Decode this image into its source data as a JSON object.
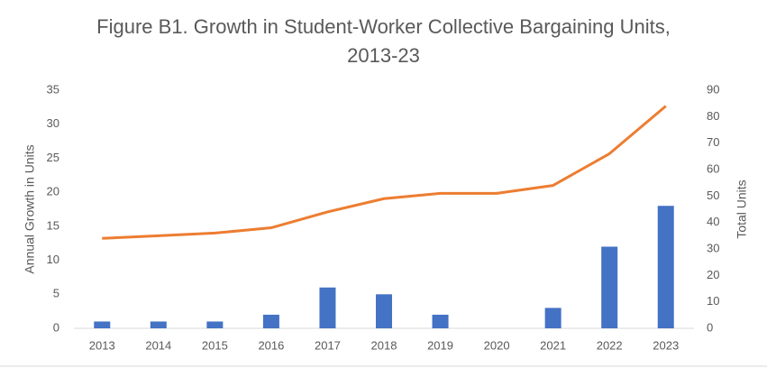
{
  "chart_data": {
    "type": "combo",
    "title": "Figure B1. Growth in Student-Worker Collective Bargaining Units, 2013-23",
    "ylabel": "Annual Growth in Units",
    "y2label": "Total Units",
    "categories": [
      "2013",
      "2014",
      "2015",
      "2016",
      "2017",
      "2018",
      "2019",
      "2020",
      "2021",
      "2022",
      "2023"
    ],
    "series": [
      {
        "type": "bar",
        "color": "#4472c4",
        "values": [
          1,
          1,
          1,
          2,
          6,
          5,
          2,
          0,
          3,
          12,
          18
        ]
      },
      {
        "type": "line",
        "axis": "y2",
        "color": "#ed7d31",
        "values": [
          34,
          35,
          36,
          38,
          44,
          49,
          51,
          51,
          54,
          66,
          84
        ]
      }
    ],
    "ylim": [
      0,
      35
    ],
    "yticks": [
      0,
      5,
      10,
      15,
      20,
      25,
      30,
      35
    ],
    "y2lim": [
      0,
      90
    ],
    "y2ticks": [
      0,
      10,
      20,
      30,
      40,
      50,
      60,
      70,
      80,
      90
    ]
  }
}
